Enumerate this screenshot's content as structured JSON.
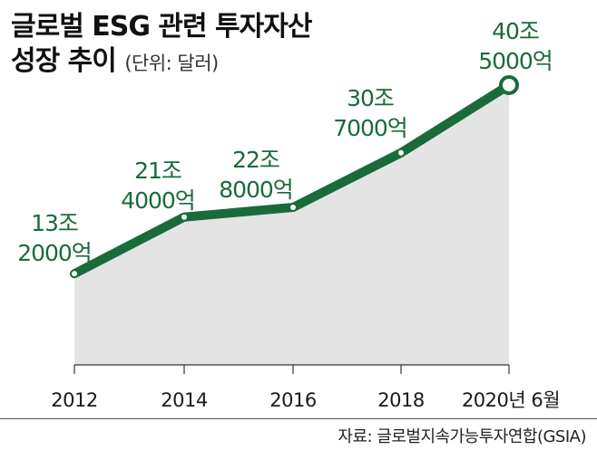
{
  "title": {
    "line1": "글로벌 ESG 관련 투자자산",
    "line2": "성장 추이",
    "unit": "(단위: 달러)"
  },
  "source": "자료: 글로벌지속가능투자연합(GSIA)",
  "colors": {
    "line": "#1a6b3a",
    "area": "#e4e4e4",
    "label": "#1a6b3a",
    "axis": "#333333"
  },
  "chart_data": {
    "type": "area",
    "x": [
      "2012",
      "2014",
      "2016",
      "2018",
      "2020년 6월"
    ],
    "tick_labels": [
      "2012",
      "2014",
      "2016",
      "2018",
      "2020년 6월"
    ],
    "values": [
      13.2,
      21.4,
      22.8,
      30.7,
      40.5
    ],
    "value_unit": "조 달러",
    "data_labels": [
      [
        "13조",
        "2000억"
      ],
      [
        "21조",
        "4000억"
      ],
      [
        "22조",
        "8000억"
      ],
      [
        "30조",
        "7000억"
      ],
      [
        "40조",
        "5000억"
      ]
    ],
    "title": "글로벌 ESG 관련 투자자산 성장 추이",
    "xlabel": "",
    "ylabel": "",
    "ylim": [
      0,
      45
    ],
    "grid": false,
    "legend": "none",
    "highlight_last_point": true
  }
}
